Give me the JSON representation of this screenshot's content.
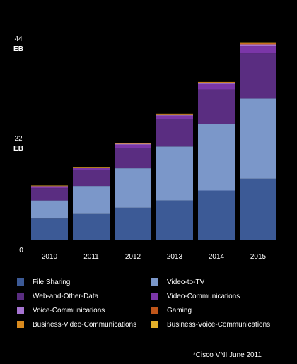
{
  "chart_data": {
    "type": "bar",
    "stacked": true,
    "categories": [
      "2010",
      "2011",
      "2012",
      "2013",
      "2014",
      "2015"
    ],
    "y_ticks": [
      {
        "value": 0,
        "label": "0",
        "unit": ""
      },
      {
        "value": 22,
        "label": "22",
        "unit": "EB"
      },
      {
        "value": 44,
        "label": "44",
        "unit": "EB"
      }
    ],
    "ylim": [
      0,
      44
    ],
    "grid": false,
    "legend_position": "bottom",
    "series": [
      {
        "name": "File Sharing",
        "color": "#3c5a96",
        "values": [
          4.8,
          5.8,
          7.2,
          8.8,
          11.0,
          13.6
        ]
      },
      {
        "name": "Video-to-TV",
        "color": "#7b97c9",
        "values": [
          4.0,
          6.2,
          8.7,
          11.9,
          14.6,
          17.7
        ]
      },
      {
        "name": "Web-and-Other-Data",
        "color": "#5a2d81",
        "values": [
          2.7,
          3.6,
          4.5,
          6.0,
          7.7,
          10.0
        ]
      },
      {
        "name": "Video-Communications",
        "color": "#7b36a8",
        "values": [
          0.4,
          0.4,
          0.7,
          0.8,
          1.2,
          1.6
        ]
      },
      {
        "name": "Voice-Communications",
        "color": "#a674d2",
        "values": [
          0.1,
          0.1,
          0.2,
          0.3,
          0.3,
          0.4
        ]
      },
      {
        "name": "Gaming",
        "color": "#c0561a",
        "values": [
          0.05,
          0.05,
          0.05,
          0.1,
          0.1,
          0.2
        ]
      },
      {
        "name": "Business-Video-Communications",
        "color": "#d98a1e",
        "values": [
          0.02,
          0.02,
          0.03,
          0.03,
          0.04,
          0.05
        ]
      },
      {
        "name": "Business-Voice-Communications",
        "color": "#e3b02a",
        "values": [
          0.01,
          0.01,
          0.01,
          0.02,
          0.02,
          0.03
        ]
      }
    ],
    "footnote": "*Cisco VNI June 2011"
  }
}
